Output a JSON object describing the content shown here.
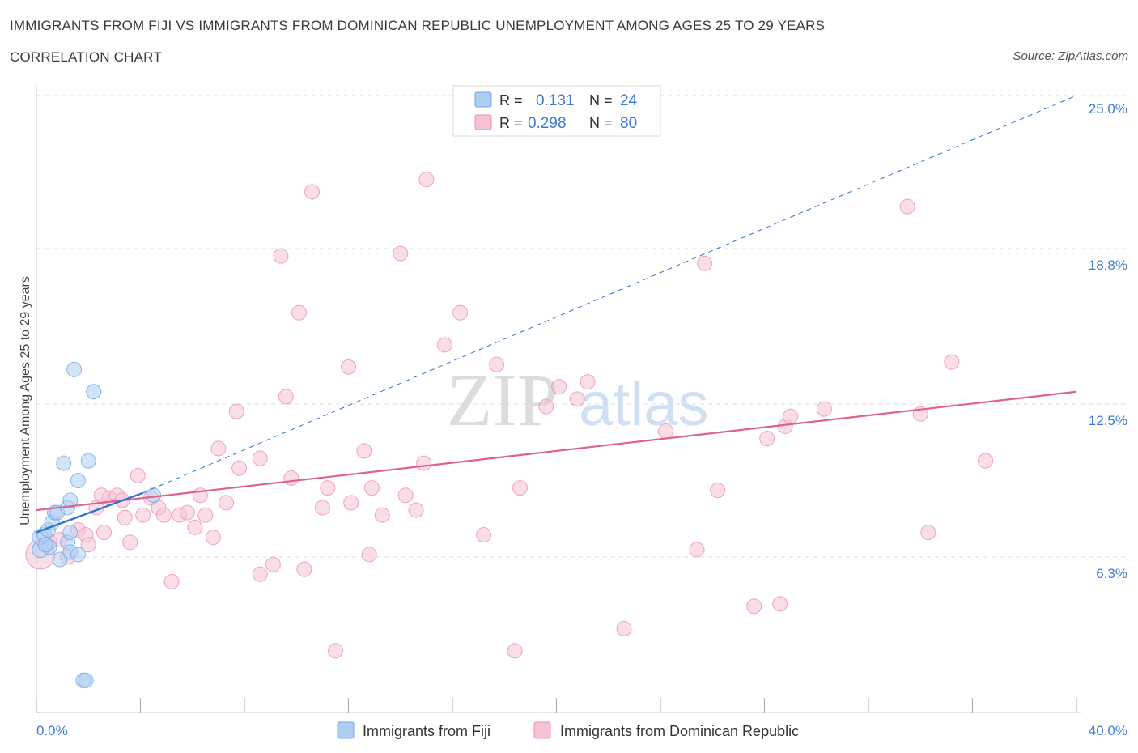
{
  "title": "IMMIGRANTS FROM FIJI VS IMMIGRANTS FROM DOMINICAN REPUBLIC UNEMPLOYMENT AMONG AGES 25 TO 29 YEARS",
  "subtitle": "CORRELATION CHART",
  "source": "Source: ZipAtlas.com",
  "watermark": {
    "zip": "ZIP",
    "atlas": "atlas"
  },
  "colors": {
    "fiji": "#6fa8e8",
    "fiji_fill": "#aecdf3",
    "fiji_line": "#2f74d0",
    "dr": "#eb8fb0",
    "dr_fill": "#f6c3d4",
    "dr_line": "#e0608e",
    "value_text": "#3d7bd4",
    "grid": "#dddddd"
  },
  "legend": {
    "rows": [
      {
        "r_label": "R =",
        "r_value": "0.131",
        "n_label": "N =",
        "n_value": "24"
      },
      {
        "r_label": "R =",
        "r_value": "0.298",
        "n_label": "N =",
        "n_value": "80"
      }
    ]
  },
  "bottom_legend": [
    "Immigrants from Fiji",
    "Immigrants from Dominican Republic"
  ],
  "chart_data": {
    "type": "scatter",
    "title": "IMMIGRANTS FROM FIJI VS IMMIGRANTS FROM DOMINICAN REPUBLIC UNEMPLOYMENT AMONG AGES 25 TO 29 YEARS",
    "xlabel": "",
    "ylabel": "Unemployment Among Ages 25 to 29 years",
    "xlim": [
      0,
      40
    ],
    "ylim": [
      0,
      25
    ],
    "x_tick_labels": [
      "0.0%",
      "40.0%"
    ],
    "y_ticks": [
      6.3,
      12.5,
      18.8,
      25.0
    ],
    "y_tick_labels": [
      "6.3%",
      "12.5%",
      "18.8%",
      "25.0%"
    ],
    "grid": true,
    "series": [
      {
        "name": "Immigrants from Fiji",
        "R": 0.131,
        "N": 24,
        "trend": {
          "x": [
            0,
            4.1
          ],
          "y": [
            7.3,
            8.9
          ],
          "extended_x": [
            4.1,
            40
          ],
          "extended_y": [
            8.9,
            25.0
          ]
        },
        "points": [
          [
            0.15,
            7.1,
            10
          ],
          [
            0.15,
            6.6,
            10
          ],
          [
            0.3,
            7.2,
            9
          ],
          [
            0.45,
            7.4,
            9
          ],
          [
            0.5,
            6.7,
            9
          ],
          [
            0.6,
            7.7,
            9
          ],
          [
            0.7,
            8.1,
            9
          ],
          [
            0.8,
            8.1,
            9
          ],
          [
            0.9,
            6.2,
            9
          ],
          [
            1.05,
            10.1,
            9
          ],
          [
            1.2,
            8.3,
            9
          ],
          [
            1.2,
            6.9,
            9
          ],
          [
            1.3,
            8.6,
            9
          ],
          [
            1.3,
            6.5,
            9
          ],
          [
            1.45,
            13.9,
            9
          ],
          [
            1.6,
            9.4,
            9
          ],
          [
            1.6,
            6.4,
            9
          ],
          [
            1.8,
            1.3,
            9
          ],
          [
            1.9,
            1.3,
            9
          ],
          [
            2.0,
            10.2,
            9
          ],
          [
            2.2,
            13.0,
            9
          ],
          [
            4.5,
            8.8,
            9
          ],
          [
            1.3,
            7.3,
            9
          ],
          [
            0.35,
            6.8,
            9
          ]
        ]
      },
      {
        "name": "Immigrants from Dominican Republic",
        "R": 0.298,
        "N": 80,
        "trend": {
          "x": [
            0,
            40
          ],
          "y": [
            8.2,
            13.0
          ]
        },
        "points": [
          [
            0.15,
            6.4,
            18
          ],
          [
            0.5,
            6.9,
            9
          ],
          [
            0.9,
            7.0,
            9
          ],
          [
            1.2,
            6.3,
            9
          ],
          [
            1.6,
            7.4,
            9
          ],
          [
            1.9,
            7.2,
            9
          ],
          [
            2.0,
            6.8,
            9
          ],
          [
            2.3,
            8.3,
            9
          ],
          [
            2.6,
            7.3,
            9
          ],
          [
            2.8,
            8.7,
            9
          ],
          [
            3.1,
            8.8,
            9
          ],
          [
            3.3,
            8.6,
            9
          ],
          [
            3.6,
            6.9,
            9
          ],
          [
            3.9,
            9.6,
            9
          ],
          [
            4.1,
            8.0,
            9
          ],
          [
            4.4,
            8.7,
            9
          ],
          [
            4.7,
            8.3,
            9
          ],
          [
            4.9,
            8.0,
            9
          ],
          [
            5.2,
            5.3,
            9
          ],
          [
            5.5,
            8.0,
            9
          ],
          [
            5.8,
            8.1,
            9
          ],
          [
            6.1,
            7.5,
            9
          ],
          [
            6.3,
            8.8,
            9
          ],
          [
            6.5,
            8.0,
            9
          ],
          [
            6.8,
            7.1,
            9
          ],
          [
            7.0,
            10.7,
            9
          ],
          [
            7.3,
            8.5,
            9
          ],
          [
            7.7,
            12.2,
            9
          ],
          [
            7.8,
            9.9,
            9
          ],
          [
            8.6,
            10.3,
            9
          ],
          [
            8.6,
            5.6,
            9
          ],
          [
            9.1,
            6.0,
            9
          ],
          [
            9.4,
            18.5,
            9
          ],
          [
            9.6,
            12.8,
            9
          ],
          [
            9.8,
            9.5,
            9
          ],
          [
            10.1,
            16.2,
            9
          ],
          [
            10.3,
            5.8,
            9
          ],
          [
            10.6,
            21.1,
            9
          ],
          [
            11.0,
            8.3,
            9
          ],
          [
            11.2,
            9.1,
            9
          ],
          [
            11.5,
            2.5,
            9
          ],
          [
            12.0,
            14.0,
            9
          ],
          [
            12.1,
            8.5,
            9
          ],
          [
            12.6,
            10.6,
            9
          ],
          [
            12.8,
            6.4,
            9
          ],
          [
            12.9,
            9.1,
            9
          ],
          [
            13.3,
            8.0,
            9
          ],
          [
            14.0,
            18.6,
            9
          ],
          [
            14.2,
            8.8,
            9
          ],
          [
            14.6,
            8.2,
            9
          ],
          [
            14.9,
            10.1,
            9
          ],
          [
            15.0,
            21.6,
            9
          ],
          [
            15.7,
            14.9,
            9
          ],
          [
            16.3,
            16.2,
            9
          ],
          [
            17.2,
            7.2,
            9
          ],
          [
            17.7,
            14.1,
            9
          ],
          [
            18.4,
            2.5,
            9
          ],
          [
            18.6,
            9.1,
            9
          ],
          [
            19.6,
            12.4,
            9
          ],
          [
            20.1,
            13.2,
            9
          ],
          [
            20.8,
            12.7,
            9
          ],
          [
            21.2,
            13.4,
            9
          ],
          [
            22.6,
            3.4,
            9
          ],
          [
            24.2,
            11.4,
            9
          ],
          [
            25.4,
            6.6,
            9
          ],
          [
            25.7,
            18.2,
            9
          ],
          [
            26.2,
            9.0,
            9
          ],
          [
            27.6,
            4.3,
            9
          ],
          [
            28.1,
            11.1,
            9
          ],
          [
            28.6,
            4.4,
            9
          ],
          [
            28.8,
            11.6,
            9
          ],
          [
            29.0,
            12.0,
            9
          ],
          [
            30.3,
            12.3,
            9
          ],
          [
            33.5,
            20.5,
            9
          ],
          [
            34.0,
            12.1,
            9
          ],
          [
            34.3,
            7.3,
            9
          ],
          [
            35.2,
            14.2,
            9
          ],
          [
            36.5,
            10.2,
            9
          ],
          [
            2.5,
            8.8,
            9
          ],
          [
            3.4,
            7.9,
            9
          ]
        ]
      }
    ]
  }
}
